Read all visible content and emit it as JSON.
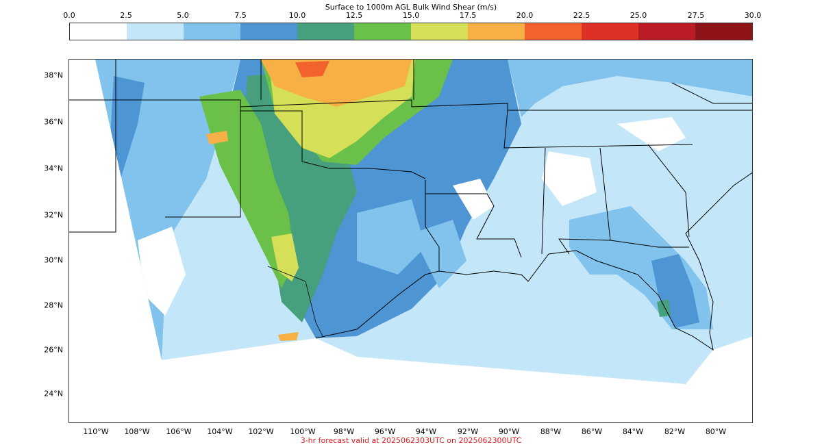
{
  "colorbar": {
    "title": "Surface to 1000m AGL Bulk Wind Shear (m/s)",
    "ticks": [
      "0.0",
      "2.5",
      "5.0",
      "7.5",
      "10.0",
      "12.5",
      "15.0",
      "17.5",
      "20.0",
      "22.5",
      "25.0",
      "27.5",
      "30.0"
    ],
    "colors": [
      "#ffffff",
      "#c3e6f8",
      "#81c3ec",
      "#4e95d3",
      "#46a07d",
      "#6ac049",
      "#d6df58",
      "#f6b045",
      "#f2622c",
      "#dd3128",
      "#bb1b25",
      "#8e1418"
    ]
  },
  "map": {
    "lat_labels": [
      "38°N",
      "36°N",
      "34°N",
      "32°N",
      "30°N",
      "28°N",
      "26°N",
      "24°N"
    ],
    "lon_labels": [
      "110°W",
      "108°W",
      "106°W",
      "104°W",
      "102°W",
      "100°W",
      "98°W",
      "96°W",
      "94°W",
      "92°W",
      "90°W",
      "88°W",
      "86°W",
      "84°W",
      "82°W",
      "80°W"
    ]
  },
  "footer": "3-hr forecast valid at 2025062303UTC on 2025062300UTC"
}
